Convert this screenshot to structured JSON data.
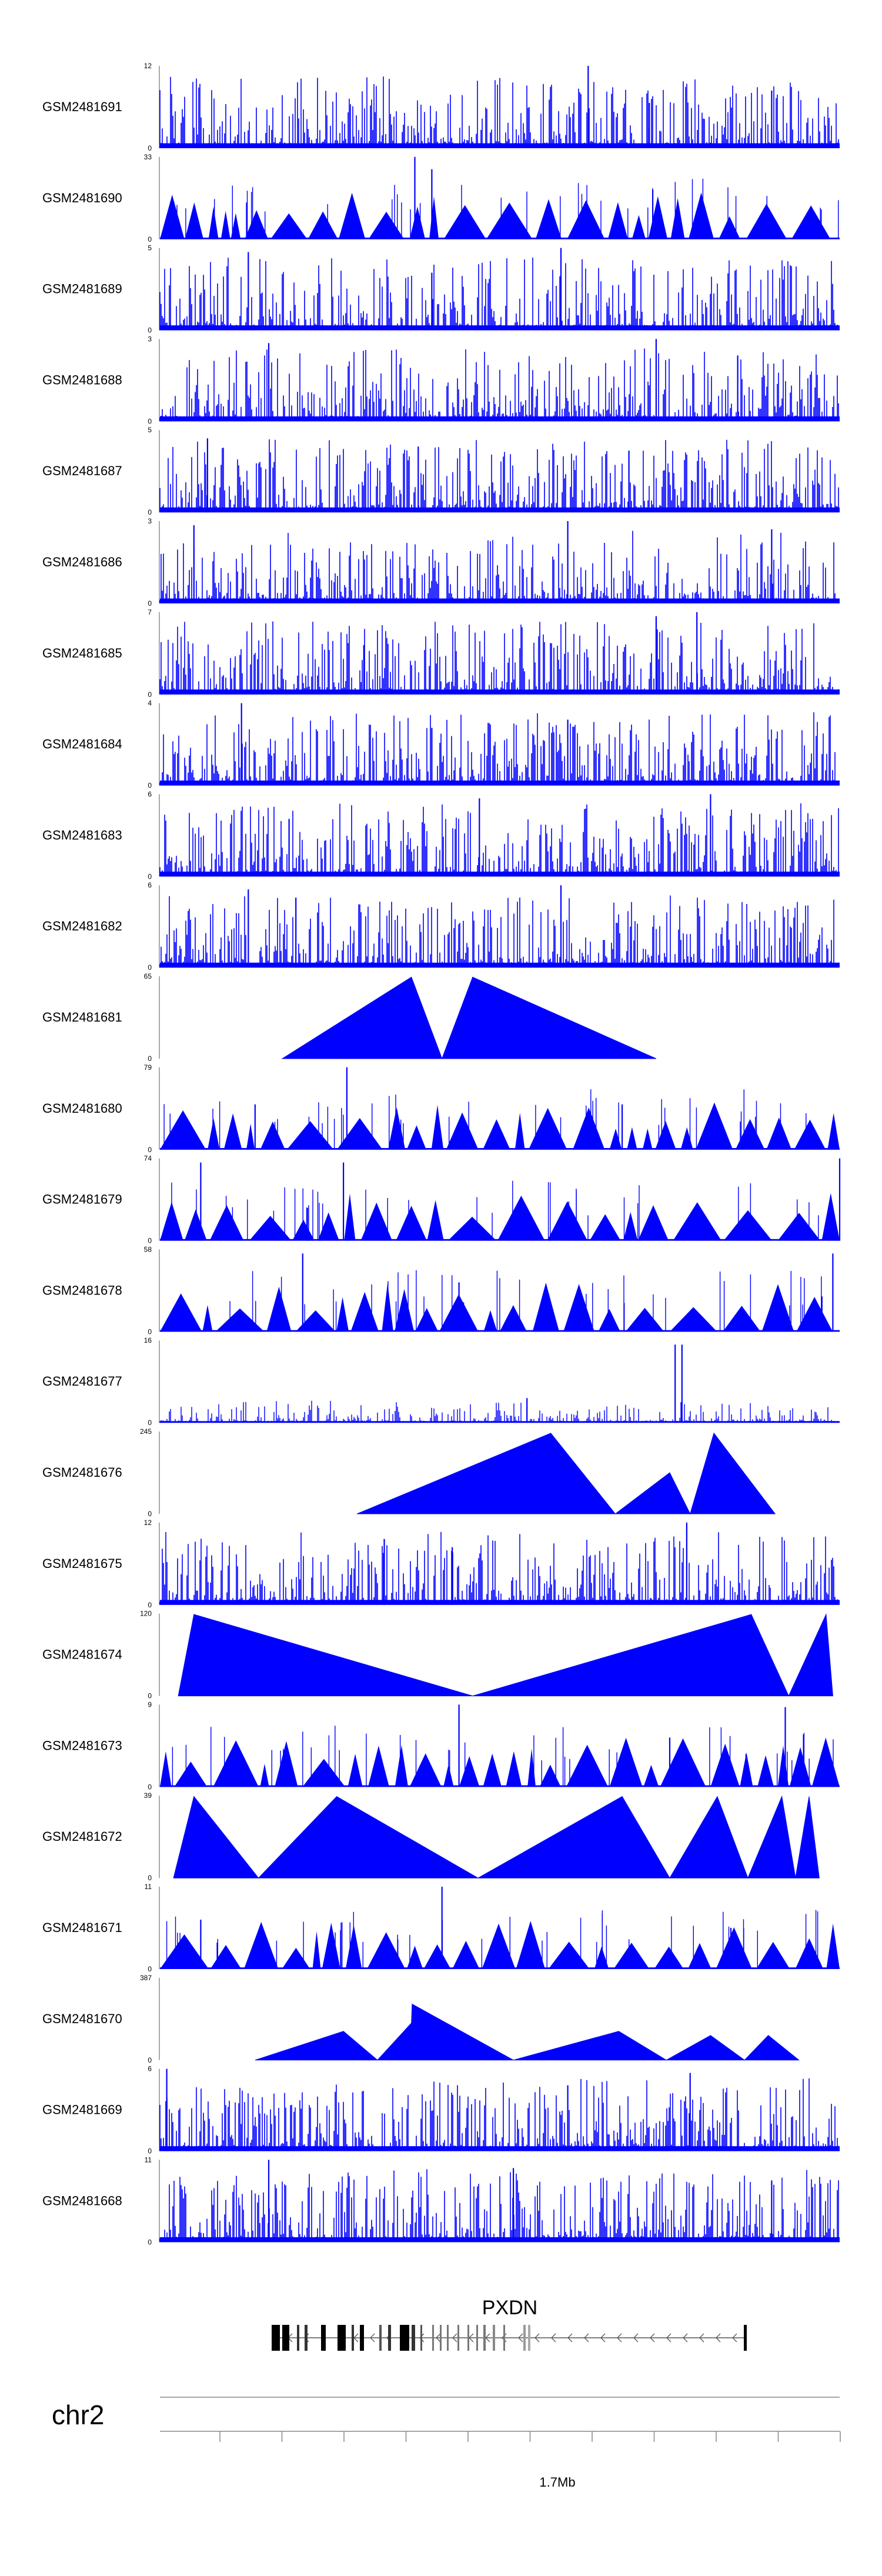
{
  "chart_data": {
    "type": "area",
    "chromosome": "chr2",
    "gene": {
      "name": "PXDN",
      "strand": "minus"
    },
    "axis": {
      "labeled_tick": "1.7Mb",
      "tick_count": 11
    },
    "fill_color": "#0000ff",
    "tracks": [
      {
        "id": "GSM2481691",
        "ymax_label": "12",
        "ymin_label": "0",
        "ymax": 12,
        "pattern": "dense",
        "seed": 11,
        "peaks": [
          [
            0.63,
            1.0
          ],
          [
            0.9,
            0.7
          ],
          [
            0.72,
            0.55
          ]
        ]
      },
      {
        "id": "GSM2481690",
        "ymax_label": "33",
        "ymin_label": "0",
        "ymax": 33,
        "pattern": "triangles",
        "seed": 12,
        "peaks": [
          [
            0.375,
            1.0
          ],
          [
            0.4,
            0.85
          ],
          [
            0.725,
            0.6
          ]
        ]
      },
      {
        "id": "GSM2481689",
        "ymax_label": "5",
        "ymin_label": "0",
        "ymax": 5,
        "pattern": "dense",
        "seed": 13,
        "peaks": [
          [
            0.13,
            0.95
          ],
          [
            0.59,
            1.0
          ],
          [
            0.4,
            0.7
          ]
        ]
      },
      {
        "id": "GSM2481688",
        "ymax_label": "3",
        "ymin_label": "0",
        "ymax": 3,
        "pattern": "dense",
        "seed": 14,
        "peaks": [
          [
            0.16,
            0.95
          ],
          [
            0.73,
            1.0
          ],
          [
            0.85,
            0.8
          ]
        ]
      },
      {
        "id": "GSM2481687",
        "ymax_label": "5",
        "ymin_label": "0",
        "ymax": 5,
        "pattern": "dense",
        "seed": 15,
        "peaks": [
          [
            0.07,
            0.9
          ],
          [
            0.38,
            0.8
          ],
          [
            0.69,
            0.75
          ]
        ]
      },
      {
        "id": "GSM2481686",
        "ymax_label": "3",
        "ymin_label": "0",
        "ymax": 3,
        "pattern": "dense",
        "seed": 16,
        "peaks": [
          [
            0.05,
            0.95
          ],
          [
            0.6,
            1.0
          ],
          [
            0.9,
            0.9
          ]
        ]
      },
      {
        "id": "GSM2481685",
        "ymax_label": "7",
        "ymin_label": "0",
        "ymax": 7,
        "pattern": "dense",
        "seed": 17,
        "peaks": [
          [
            0.73,
            0.95
          ],
          [
            0.79,
            1.0
          ],
          [
            0.3,
            0.6
          ]
        ]
      },
      {
        "id": "GSM2481684",
        "ymax_label": "4",
        "ymin_label": "0",
        "ymax": 4,
        "pattern": "dense",
        "seed": 18,
        "peaks": [
          [
            0.12,
            1.0
          ],
          [
            0.6,
            0.8
          ],
          [
            0.4,
            0.7
          ]
        ]
      },
      {
        "id": "GSM2481683",
        "ymax_label": "6",
        "ymin_label": "0",
        "ymax": 6,
        "pattern": "dense",
        "seed": 19,
        "peaks": [
          [
            0.47,
            0.95
          ],
          [
            0.81,
            1.0
          ],
          [
            0.19,
            0.7
          ]
        ]
      },
      {
        "id": "GSM2481682",
        "ymax_label": "6",
        "ymin_label": "0",
        "ymax": 6,
        "pattern": "dense",
        "seed": 20,
        "peaks": [
          [
            0.13,
            0.95
          ],
          [
            0.59,
            1.0
          ],
          [
            0.2,
            0.85
          ]
        ]
      },
      {
        "id": "GSM2481681",
        "ymax_label": "65",
        "ymin_label": "0",
        "ymax": 65,
        "pattern": "poly",
        "points": [
          [
            0.18,
            0
          ],
          [
            0.37,
            0.99
          ],
          [
            0.415,
            0
          ],
          [
            0.46,
            0.99
          ],
          [
            0.73,
            0
          ]
        ]
      },
      {
        "id": "GSM2481680",
        "ymax_label": "79",
        "ymin_label": "0",
        "ymax": 79,
        "pattern": "triangles",
        "seed": 22,
        "peaks": [
          [
            0.275,
            1.0
          ],
          [
            0.14,
            0.55
          ],
          [
            0.68,
            0.55
          ]
        ]
      },
      {
        "id": "GSM2481679",
        "ymax_label": "74",
        "ymin_label": "0",
        "ymax": 74,
        "pattern": "triangles",
        "seed": 23,
        "peaks": [
          [
            0.06,
            0.95
          ],
          [
            0.27,
            0.95
          ],
          [
            1.0,
            1.0
          ]
        ]
      },
      {
        "id": "GSM2481678",
        "ymax_label": "58",
        "ymin_label": "0",
        "ymax": 58,
        "pattern": "triangles",
        "seed": 24,
        "peaks": [
          [
            0.21,
            0.95
          ],
          [
            0.99,
            0.95
          ],
          [
            0.44,
            0.6
          ]
        ]
      },
      {
        "id": "GSM2481677",
        "ymax_label": "16",
        "ymin_label": "0",
        "ymax": 16,
        "pattern": "sparse",
        "seed": 25,
        "peaks": [
          [
            0.758,
            0.95
          ],
          [
            0.768,
            0.95
          ],
          [
            0.54,
            0.3
          ]
        ]
      },
      {
        "id": "GSM2481676",
        "ymax_label": "245",
        "ymin_label": "0",
        "ymax": 245,
        "pattern": "poly",
        "points": [
          [
            0.29,
            0
          ],
          [
            0.575,
            0.98
          ],
          [
            0.67,
            0
          ],
          [
            0.75,
            0.5
          ],
          [
            0.78,
            0
          ],
          [
            0.815,
            0.98
          ],
          [
            0.905,
            0
          ]
        ]
      },
      {
        "id": "GSM2481675",
        "ymax_label": "12",
        "ymin_label": "0",
        "ymax": 12,
        "pattern": "dense",
        "seed": 27,
        "peaks": [
          [
            0.775,
            1.0
          ],
          [
            0.33,
            0.8
          ],
          [
            0.43,
            0.7
          ]
        ]
      },
      {
        "id": "GSM2481674",
        "ymax_label": "120",
        "ymin_label": "0",
        "ymax": 120,
        "pattern": "poly",
        "points": [
          [
            0.027,
            0
          ],
          [
            0.05,
            0.99
          ],
          [
            0.46,
            0
          ],
          [
            0.87,
            0.99
          ],
          [
            0.925,
            0
          ],
          [
            0.98,
            0.99
          ],
          [
            0.99,
            0
          ]
        ]
      },
      {
        "id": "GSM2481673",
        "ymax_label": "9",
        "ymin_label": "0",
        "ymax": 9,
        "pattern": "triangles",
        "seed": 29,
        "peaks": [
          [
            0.44,
            1.0
          ],
          [
            0.92,
            0.97
          ],
          [
            0.75,
            0.6
          ]
        ]
      },
      {
        "id": "GSM2481672",
        "ymax_label": "39",
        "ymin_label": "0",
        "ymax": 39,
        "pattern": "poly",
        "points": [
          [
            0.02,
            0
          ],
          [
            0.05,
            0.99
          ],
          [
            0.145,
            0
          ],
          [
            0.26,
            0.99
          ],
          [
            0.468,
            0
          ],
          [
            0.68,
            0.99
          ],
          [
            0.75,
            0
          ],
          [
            0.82,
            0.99
          ],
          [
            0.865,
            0
          ],
          [
            0.915,
            0.99
          ],
          [
            0.935,
            0
          ],
          [
            0.955,
            0.99
          ],
          [
            0.97,
            0
          ]
        ]
      },
      {
        "id": "GSM2481671",
        "ymax_label": "11",
        "ymin_label": "0",
        "ymax": 11,
        "pattern": "triangles",
        "seed": 31,
        "peaks": [
          [
            0.415,
            1.0
          ],
          [
            0.06,
            0.6
          ],
          [
            0.84,
            0.5
          ]
        ]
      },
      {
        "id": "GSM2481670",
        "ymax_label": "387",
        "ymin_label": "0",
        "ymax": 387,
        "pattern": "poly",
        "points": [
          [
            0.14,
            0
          ],
          [
            0.27,
            0.35
          ],
          [
            0.32,
            0
          ],
          [
            0.37,
            0.45
          ],
          [
            0.371,
            0.68
          ],
          [
            0.52,
            0
          ],
          [
            0.675,
            0.35
          ],
          [
            0.745,
            0
          ],
          [
            0.81,
            0.3
          ],
          [
            0.86,
            0
          ],
          [
            0.895,
            0.3
          ],
          [
            0.94,
            0
          ]
        ]
      },
      {
        "id": "GSM2481669",
        "ymax_label": "6",
        "ymin_label": "0",
        "ymax": 6,
        "pattern": "dense",
        "seed": 33,
        "peaks": [
          [
            0.01,
            1.0
          ],
          [
            0.78,
            0.95
          ],
          [
            0.6,
            0.8
          ]
        ]
      },
      {
        "id": "GSM2481668",
        "ymax_label": "11",
        "ymin_label": "0",
        "ymax": 11,
        "pattern": "dense",
        "seed": 34,
        "peaks": [
          [
            0.16,
            1.0
          ],
          [
            0.52,
            0.9
          ],
          [
            0.9,
            0.75
          ]
        ]
      }
    ]
  }
}
